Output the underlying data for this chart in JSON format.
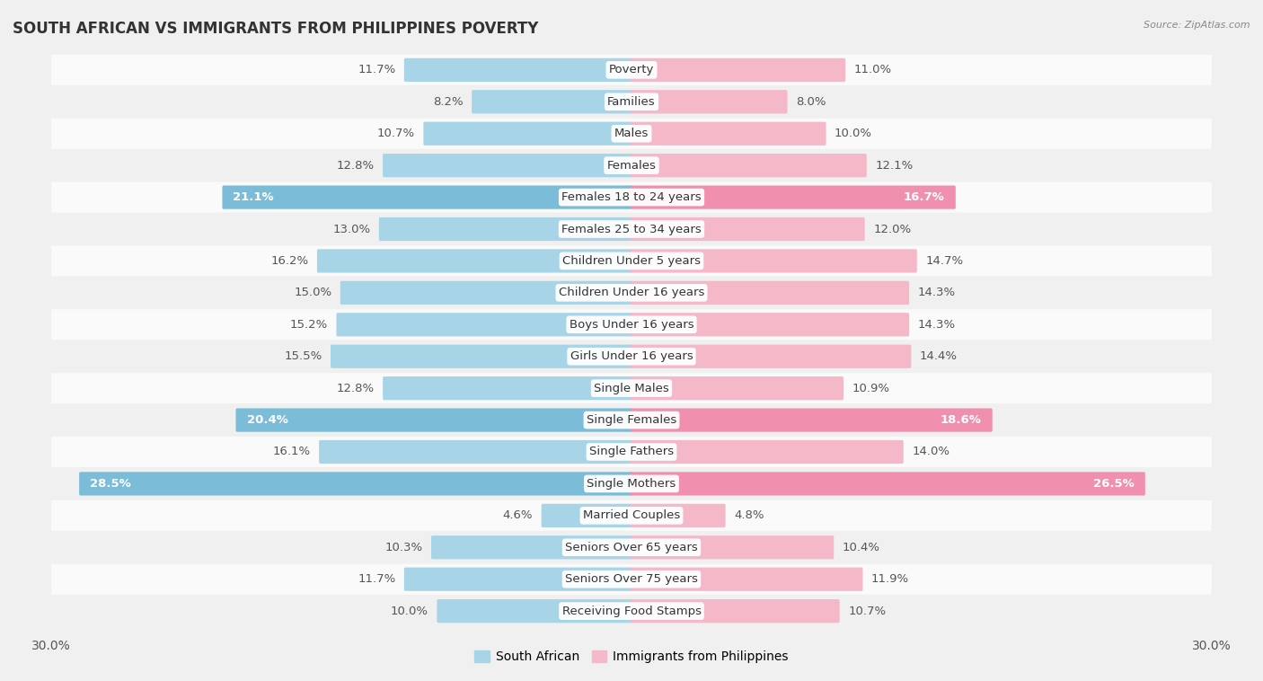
{
  "title": "SOUTH AFRICAN VS IMMIGRANTS FROM PHILIPPINES POVERTY",
  "source": "Source: ZipAtlas.com",
  "categories": [
    "Poverty",
    "Families",
    "Males",
    "Females",
    "Females 18 to 24 years",
    "Females 25 to 34 years",
    "Children Under 5 years",
    "Children Under 16 years",
    "Boys Under 16 years",
    "Girls Under 16 years",
    "Single Males",
    "Single Females",
    "Single Fathers",
    "Single Mothers",
    "Married Couples",
    "Seniors Over 65 years",
    "Seniors Over 75 years",
    "Receiving Food Stamps"
  ],
  "south_african": [
    11.7,
    8.2,
    10.7,
    12.8,
    21.1,
    13.0,
    16.2,
    15.0,
    15.2,
    15.5,
    12.8,
    20.4,
    16.1,
    28.5,
    4.6,
    10.3,
    11.7,
    10.0
  ],
  "philippines": [
    11.0,
    8.0,
    10.0,
    12.1,
    16.7,
    12.0,
    14.7,
    14.3,
    14.3,
    14.4,
    10.9,
    18.6,
    14.0,
    26.5,
    4.8,
    10.4,
    11.9,
    10.7
  ],
  "sa_color_normal": "#a8d4e8",
  "ph_color_normal": "#f4b8c8",
  "sa_color_highlight": "#7bbcd8",
  "ph_color_highlight": "#f090ae",
  "row_bg_light": "#f0f0f0",
  "row_bg_white": "#fafafa",
  "bg_color": "#f0f0f0",
  "xlim": 30.0,
  "bar_height": 0.62,
  "label_fontsize": 9.5,
  "title_fontsize": 12,
  "source_fontsize": 8,
  "legend_fontsize": 10,
  "highlight_rows": [
    "Females 18 to 24 years",
    "Single Females",
    "Single Mothers"
  ]
}
